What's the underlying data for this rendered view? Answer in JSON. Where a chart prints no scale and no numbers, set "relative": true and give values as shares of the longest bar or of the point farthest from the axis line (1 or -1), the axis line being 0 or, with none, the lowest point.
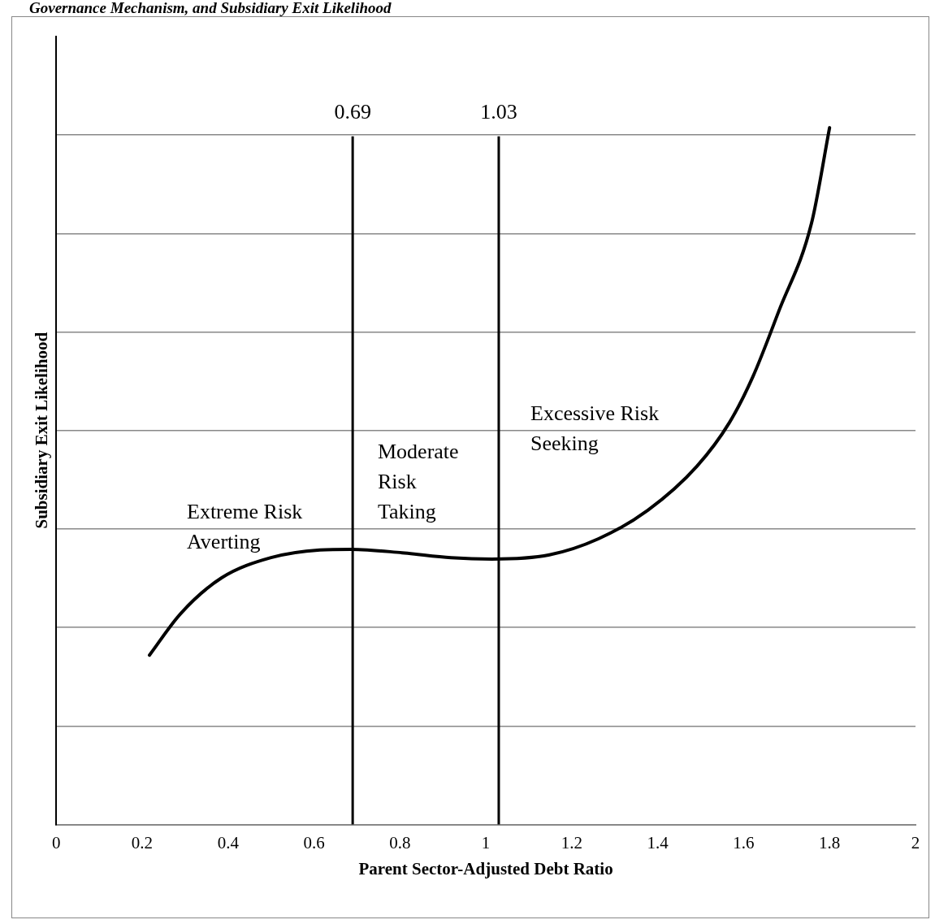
{
  "chart_data": {
    "type": "line",
    "title": "Governance Mechanism, and Subsidiary Exit Likelihood",
    "xlabel": "Parent Sector-Adjusted Debt Ratio",
    "ylabel": "Subsidiary Exit Likelihood",
    "relative": true,
    "x": [
      0.217,
      0.29,
      0.385,
      0.5,
      0.614,
      0.686,
      0.805,
      0.919,
      1.014,
      1.148,
      1.262,
      1.377,
      1.491,
      1.567,
      1.621,
      1.682,
      1.758,
      1.8
    ],
    "series": [
      {
        "color": "#000000",
        "values": [
          0.243,
          0.303,
          0.354,
          0.383,
          0.394,
          0.395,
          0.39,
          0.383,
          0.381,
          0.387,
          0.41,
          0.451,
          0.514,
          0.577,
          0.642,
          0.737,
          0.863,
          1.0
        ]
      }
    ],
    "xlim": [
      0,
      2
    ],
    "xticks": [
      0,
      0.2,
      0.4,
      0.6,
      0.8,
      1,
      1.2,
      1.4,
      1.6,
      1.8,
      2
    ],
    "grid": "y",
    "marker": "none",
    "line_style": "solid",
    "legend": false,
    "ref_lines": [
      {
        "axis": "x",
        "value": 0.69,
        "label": "0.69",
        "color": "#000000"
      },
      {
        "axis": "x",
        "value": 1.03,
        "label": "1.03",
        "color": "#000000"
      }
    ],
    "annotations": [
      "Extreme Risk\nAverting",
      "Moderate\nRisk\nTaking",
      "Excessive Risk\nSeeking"
    ]
  }
}
